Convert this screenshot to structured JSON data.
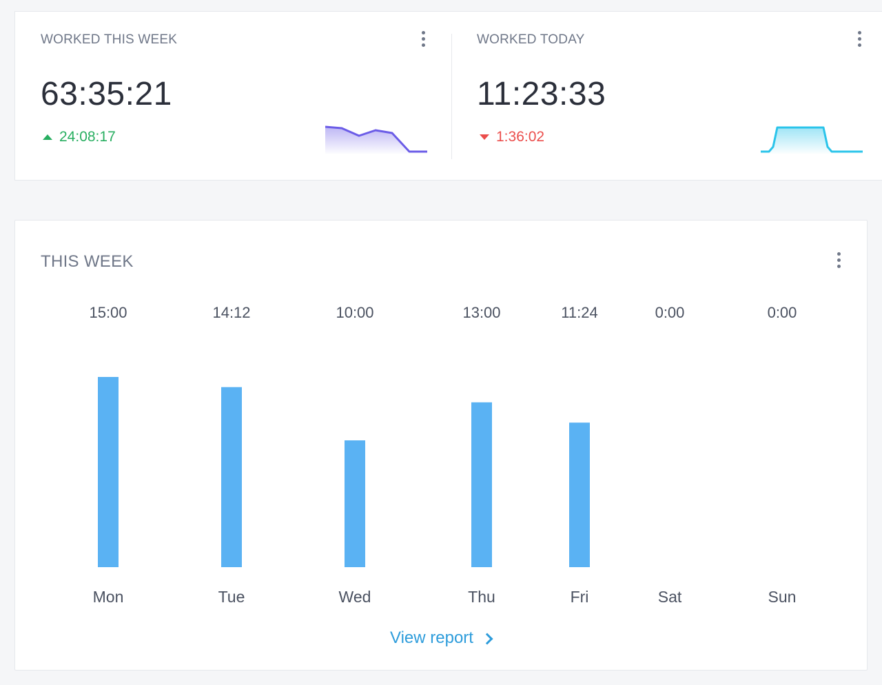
{
  "colors": {
    "positive": "#27ae60",
    "negative": "#eb4d4b",
    "week_spark": "#6b5ce7",
    "today_spark": "#2bc4ea",
    "bar": "#5ab2f3",
    "link": "#2d9cdb"
  },
  "worked_week": {
    "label": "WORKED THIS WEEK",
    "value": "63:35:21",
    "delta": "24:08:17",
    "delta_direction": "up",
    "menu_icon": "kebab-vertical-icon"
  },
  "worked_today": {
    "label": "WORKED TODAY",
    "value": "11:23:33",
    "delta": "1:36:02",
    "delta_direction": "down",
    "menu_icon": "kebab-vertical-icon"
  },
  "this_week": {
    "title": "THIS WEEK",
    "menu_icon": "kebab-vertical-icon",
    "view_report_label": "View report",
    "view_report_icon": "chevron-right-icon"
  },
  "chart_data": {
    "type": "bar",
    "categories": [
      "Mon",
      "Tue",
      "Wed",
      "Thu",
      "Fri",
      "Sat",
      "Sun"
    ],
    "value_labels": [
      "15:00",
      "14:12",
      "10:00",
      "13:00",
      "11:24",
      "0:00",
      "0:00"
    ],
    "values": [
      15.0,
      14.2,
      10.0,
      13.0,
      11.4,
      0,
      0
    ],
    "unit": "hours"
  }
}
